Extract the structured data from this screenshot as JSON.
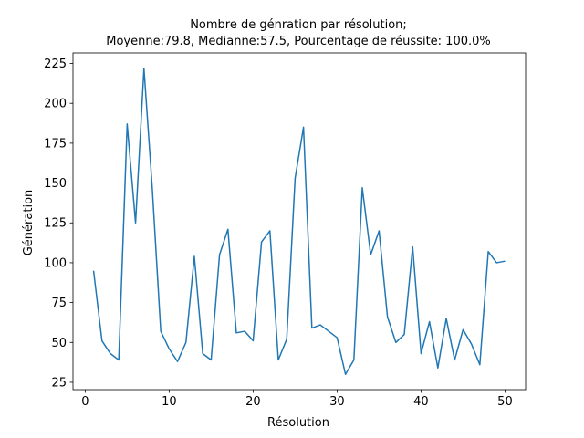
{
  "chart_data": {
    "type": "line",
    "title_line1": "Nombre de génration par résolution;",
    "title_line2": "Moyenne:79.8, Medianne:57.5, Pourcentage de réussite: 100.0%",
    "xlabel": "Résolution",
    "ylabel": "Génération",
    "xlim": [
      -1.45,
      52.45
    ],
    "ylim": [
      20.4,
      231.6
    ],
    "xticks": [
      0,
      10,
      20,
      30,
      40,
      50
    ],
    "yticks": [
      25,
      50,
      75,
      100,
      125,
      150,
      175,
      200,
      225
    ],
    "grid": false,
    "line_color": "#1f77b4",
    "series": [
      {
        "x": [
          1,
          2,
          3,
          4,
          5,
          6,
          7,
          8,
          9,
          10,
          11,
          12,
          13,
          14,
          15,
          16,
          17,
          18,
          19,
          20,
          21,
          22,
          23,
          24,
          25,
          26,
          27,
          28,
          29,
          30,
          31,
          32,
          33,
          34,
          35,
          36,
          37,
          38,
          39,
          40,
          41,
          42,
          43,
          44,
          45,
          46,
          47,
          48,
          49,
          50
        ],
        "y": [
          95,
          51,
          43,
          39,
          187,
          125,
          222,
          146,
          57,
          46,
          38,
          50,
          104,
          43,
          39,
          105,
          121,
          56,
          57,
          51,
          113,
          120,
          39,
          52,
          153,
          185,
          59,
          61,
          57,
          53,
          30,
          39,
          147,
          105,
          120,
          66,
          50,
          55,
          110,
          43,
          63,
          34,
          65,
          39,
          58,
          49,
          36,
          107,
          100,
          101
        ]
      }
    ]
  }
}
